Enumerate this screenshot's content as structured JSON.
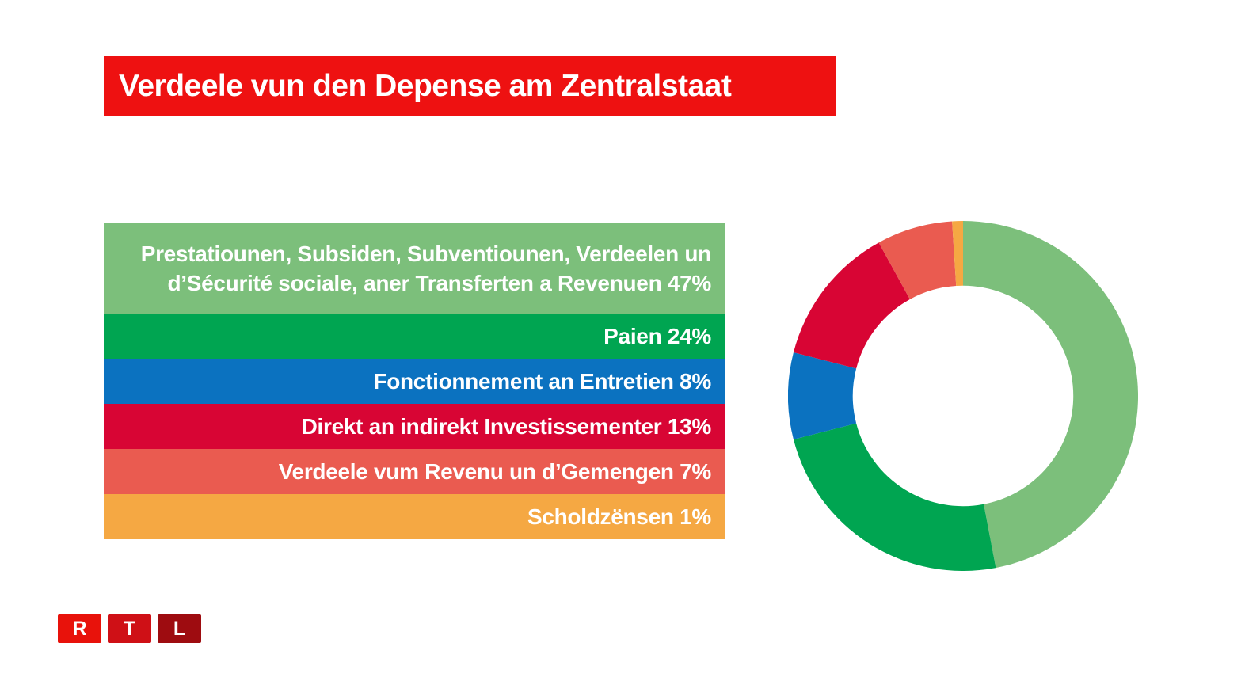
{
  "title": {
    "text": "Verdeele vun den Depense am Zentralstaat",
    "bg_color": "#EE1111",
    "text_color": "#FFFFFF"
  },
  "legend": {
    "items": [
      {
        "lines": [
          "Prestatiounen, Subsiden, Subventiounen, Verdeelen un",
          "d’Sécurité sociale, aner Transferten a Revenuen 47%"
        ],
        "label": "Prestatiounen, Subsiden, Subventiounen, Verdeelen un d’Sécurité sociale, aner Transferten a Revenuen 47%",
        "color": "#7CBF7B"
      },
      {
        "label": "Paien 24%",
        "color": "#00A551"
      },
      {
        "label": "Fonctionnement an Entretien 8%",
        "color": "#0B72C0"
      },
      {
        "label": "Direkt an indirekt Investissementer 13%",
        "color": "#D80534"
      },
      {
        "label": "Verdeele vum Revenu un d’Gemengen 7%",
        "color": "#EA5B50"
      },
      {
        "label": "Scholdzënsen 1%",
        "color": "#F5A843"
      }
    ]
  },
  "chart_data": {
    "type": "pie",
    "subtype": "donut",
    "title": "Verdeele vun den Depense am Zentralstaat",
    "start_angle_deg": 0,
    "direction": "clockwise",
    "inner_radius_ratio": 0.63,
    "legend_position": "left",
    "series": [
      {
        "name": "Prestatiounen, Subsiden, Subventiounen, Verdeelen un d’Sécurité sociale, aner Transferten a Revenuen",
        "value": 47,
        "color": "#7CBF7B"
      },
      {
        "name": "Paien",
        "value": 24,
        "color": "#00A551"
      },
      {
        "name": "Fonctionnement an Entretien",
        "value": 8,
        "color": "#0B72C0"
      },
      {
        "name": "Direkt an indirekt Investissementer",
        "value": 13,
        "color": "#D80534"
      },
      {
        "name": "Verdeele vum Revenu un d’Gemengen",
        "value": 7,
        "color": "#EA5B50"
      },
      {
        "name": "Scholdzënsen",
        "value": 1,
        "color": "#F5A843"
      }
    ]
  },
  "logo": {
    "name": "RTL",
    "blocks": [
      {
        "letter": "R",
        "color": "#E8120B"
      },
      {
        "letter": "T",
        "color": "#CF1016"
      },
      {
        "letter": "L",
        "color": "#9E0C10"
      }
    ]
  }
}
